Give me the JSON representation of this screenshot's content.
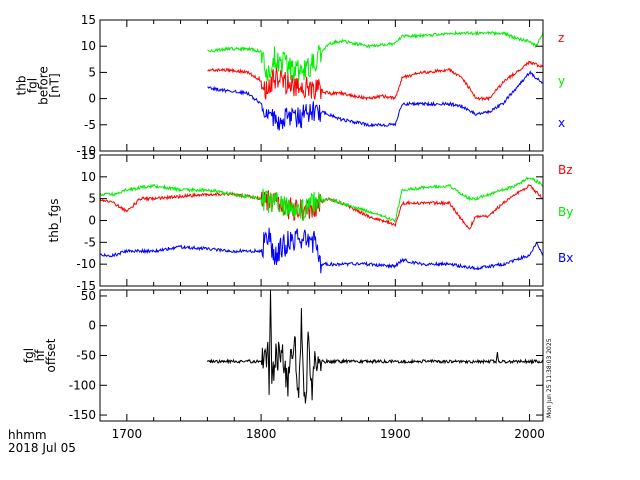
{
  "chart_data": [
    {
      "type": "line",
      "panel": "fgl_before",
      "ylabel_lines": [
        "thb",
        "fgl",
        "before",
        "[nT]"
      ],
      "ylim": [
        -10,
        15
      ],
      "yticks": [
        -10,
        -5,
        0,
        5,
        10,
        15
      ],
      "ytick_labels": [
        "-10",
        "-5",
        "0",
        "5",
        "10",
        "15"
      ],
      "grid": false,
      "legend_placement": "right",
      "series": [
        {
          "name": "z",
          "color": "#ff0000",
          "x": [
            1760,
            1775,
            1790,
            1800,
            1805,
            1810,
            1820,
            1830,
            1840,
            1850,
            1860,
            1870,
            1880,
            1890,
            1900,
            1905,
            1920,
            1940,
            1950,
            1960,
            1970,
            1980,
            1990,
            2000,
            2010
          ],
          "y": [
            5.5,
            5.5,
            5,
            3.5,
            1,
            4,
            3,
            2,
            2,
            1,
            1,
            0.5,
            0,
            0.5,
            0,
            4,
            5,
            5.5,
            4,
            0,
            0,
            3,
            5,
            7,
            6
          ]
        },
        {
          "name": "y",
          "color": "#00ee00",
          "x": [
            1760,
            1775,
            1790,
            1800,
            1805,
            1810,
            1820,
            1830,
            1840,
            1850,
            1860,
            1880,
            1900,
            1905,
            1920,
            1940,
            1960,
            1980,
            1990,
            2000,
            2005,
            2010
          ],
          "y": [
            9,
            9.5,
            9.5,
            9,
            4,
            8,
            6,
            5,
            7,
            10.5,
            11,
            10,
            10.5,
            12,
            12,
            12.5,
            12.5,
            12.5,
            11.5,
            11,
            10,
            12.5
          ]
        },
        {
          "name": "x",
          "color": "#0000ff",
          "x": [
            1760,
            1775,
            1790,
            1800,
            1805,
            1810,
            1820,
            1830,
            1840,
            1850,
            1860,
            1880,
            1890,
            1900,
            1905,
            1920,
            1940,
            1950,
            1960,
            1970,
            1980,
            1990,
            2000,
            2010
          ],
          "y": [
            2,
            1.5,
            1,
            -1,
            -3,
            -4,
            -4,
            -3.5,
            -2,
            -3,
            -4,
            -5,
            -5,
            -5,
            -1,
            -1,
            -1,
            -1.5,
            -3,
            -2.5,
            -1,
            2,
            5,
            3
          ]
        }
      ]
    },
    {
      "type": "line",
      "panel": "fgs",
      "ylabel_lines": [
        "thb_fgs"
      ],
      "ylim": [
        -15,
        15
      ],
      "yticks": [
        -15,
        -10,
        -5,
        0,
        5,
        10,
        15
      ],
      "ytick_labels": [
        "-15",
        "-10",
        "-5",
        "0",
        "5",
        "10",
        "15"
      ],
      "grid": false,
      "legend_placement": "right",
      "series": [
        {
          "name": "Bz",
          "color": "#ff0000",
          "x": [
            1680,
            1690,
            1700,
            1710,
            1720,
            1740,
            1760,
            1780,
            1800,
            1810,
            1820,
            1830,
            1840,
            1850,
            1860,
            1880,
            1900,
            1905,
            1920,
            1940,
            1955,
            1960,
            1970,
            1980,
            1990,
            2000,
            2010
          ],
          "y": [
            5,
            4,
            2,
            5,
            5,
            5.5,
            6,
            6,
            5,
            4,
            3,
            2,
            3,
            5,
            4,
            1,
            -1,
            4,
            4,
            4,
            -2,
            1,
            1,
            4,
            6,
            8,
            5
          ]
        },
        {
          "name": "By",
          "color": "#00ee00",
          "x": [
            1680,
            1690,
            1700,
            1720,
            1740,
            1760,
            1780,
            1800,
            1810,
            1820,
            1830,
            1840,
            1850,
            1860,
            1870,
            1880,
            1890,
            1900,
            1905,
            1920,
            1940,
            1955,
            1960,
            1970,
            1980,
            1990,
            2000,
            2010
          ],
          "y": [
            6,
            6,
            7,
            8,
            7,
            7,
            6,
            5,
            4,
            3,
            2,
            4,
            5,
            4,
            3,
            2,
            1,
            0,
            7,
            7.5,
            8,
            5,
            5,
            6,
            7,
            8,
            10,
            8
          ]
        },
        {
          "name": "Bx",
          "color": "#0000ff",
          "x": [
            1680,
            1690,
            1700,
            1720,
            1740,
            1760,
            1780,
            1800,
            1805,
            1810,
            1820,
            1830,
            1840,
            1845,
            1860,
            1880,
            1900,
            1905,
            1920,
            1940,
            1960,
            1980,
            1990,
            2000,
            2005,
            2010
          ],
          "y": [
            -8,
            -8,
            -7,
            -7,
            -6,
            -6.5,
            -7,
            -7,
            -3,
            -8,
            -5,
            -4,
            -5,
            -10,
            -10,
            -10,
            -10.5,
            -9,
            -10,
            -10,
            -11,
            -10,
            -9,
            -8,
            -5,
            -8
          ]
        }
      ]
    },
    {
      "type": "line",
      "panel": "fgl_offset",
      "ylabel_lines": [
        "fgl",
        "hf",
        "offset"
      ],
      "ylim": [
        -160,
        60
      ],
      "yticks": [
        -150,
        -100,
        -50,
        0,
        50
      ],
      "ytick_labels": [
        "-150",
        "-100",
        "-50",
        "0",
        "50"
      ],
      "grid": false,
      "series": [
        {
          "color": "#000000",
          "x": [
            1760,
            1780,
            1800,
            1805,
            1806,
            1807,
            1808,
            1810,
            1815,
            1820,
            1825,
            1828,
            1830,
            1833,
            1835,
            1838,
            1840,
            1845,
            1860,
            1880,
            1900,
            1920,
            1940,
            1960,
            1975,
            1976,
            1977,
            1990,
            2010
          ],
          "y": [
            -60,
            -60,
            -60,
            -45,
            -90,
            55,
            -110,
            -60,
            -40,
            -95,
            -20,
            -125,
            5,
            -145,
            -30,
            -110,
            -60,
            -60,
            -60,
            -60,
            -60,
            -60,
            -60,
            -60,
            -60,
            -45,
            -60,
            -60,
            -60
          ]
        }
      ]
    }
  ],
  "xaxis": {
    "xlim": [
      1680,
      2010
    ],
    "ticks": [
      1700,
      1800,
      1900,
      2000
    ],
    "tick_labels": [
      "1700",
      "1800",
      "1900",
      "2000"
    ],
    "label_line1": "hhmm",
    "label_line2": "2018 Jul 05"
  },
  "timestamp": "Mon Jun 25 11:38:03 2025"
}
